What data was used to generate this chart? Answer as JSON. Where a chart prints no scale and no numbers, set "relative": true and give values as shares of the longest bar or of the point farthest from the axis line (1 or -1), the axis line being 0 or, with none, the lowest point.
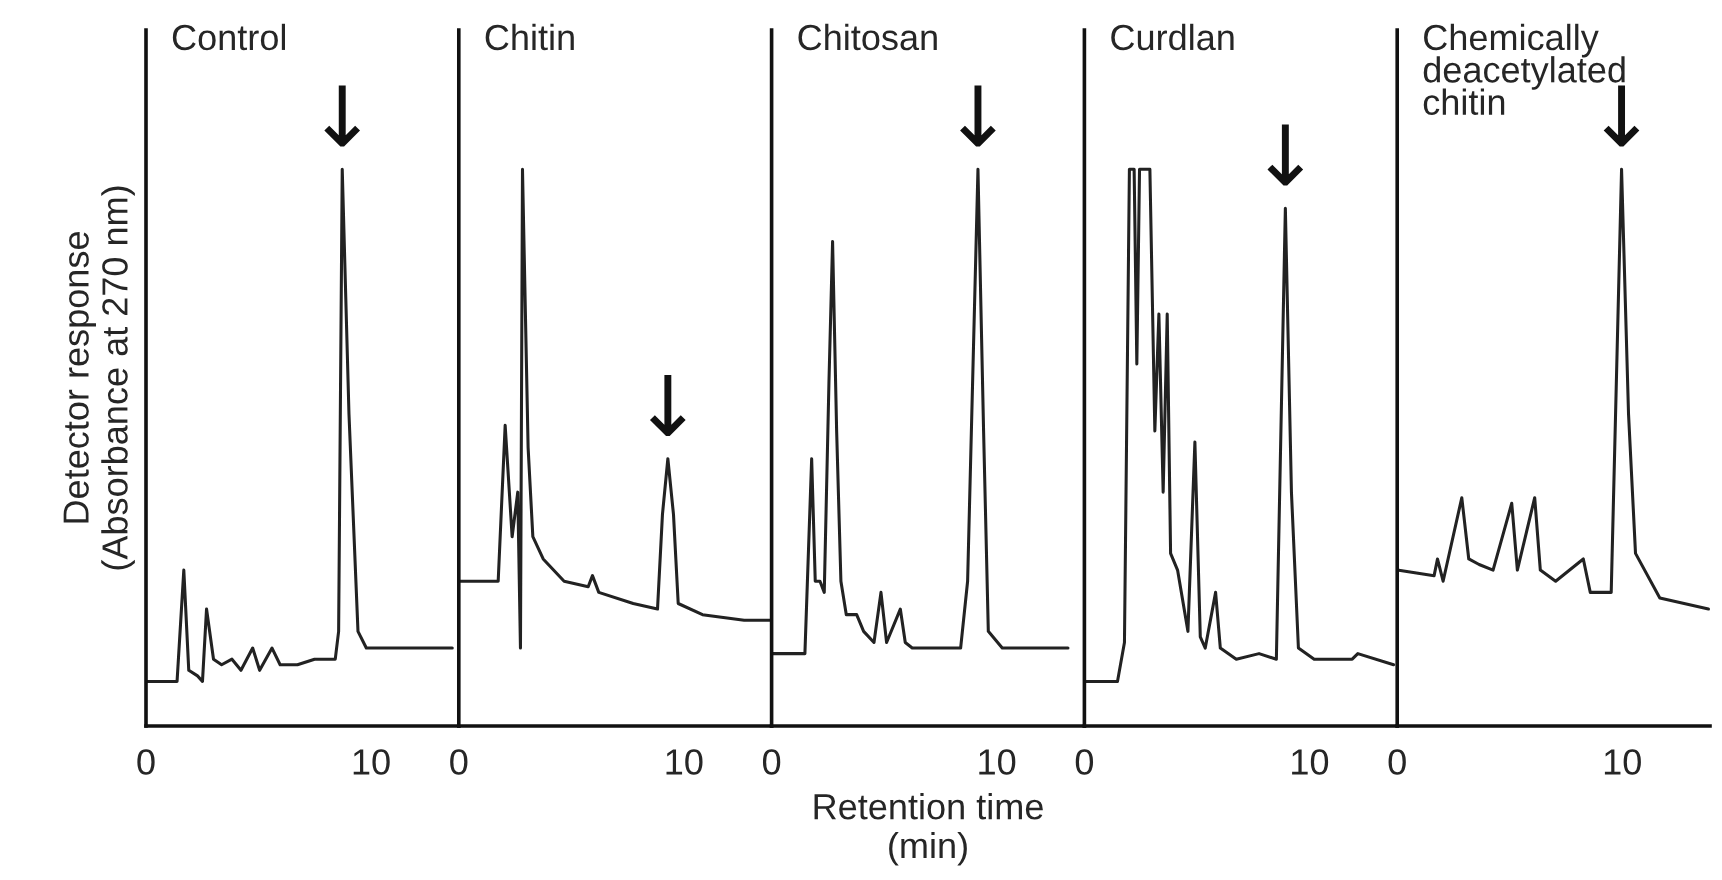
{
  "chart_data": [
    {
      "type": "line",
      "relative": true,
      "title": "Control",
      "ylabel": "Detector response\n(Absorbance at 270 nm)",
      "xlim": [
        0,
        13.9
      ],
      "xticks": [
        0,
        10
      ],
      "tick_labels": "x",
      "grid": false,
      "series": [
        {
          "color": "#222222",
          "x": [
            0,
            1.38,
            1.68,
            1.9,
            2.29,
            2.51,
            2.69,
            3.0,
            3.36,
            3.82,
            4.22,
            4.74,
            5.05,
            5.6,
            5.96,
            6.73,
            7.49,
            8.41,
            8.56,
            8.72,
            9.02,
            9.42,
            9.79,
            11.31,
            13.61
          ],
          "values": [
            0.08,
            0.08,
            0.28,
            0.1,
            0.09,
            0.08,
            0.21,
            0.12,
            0.11,
            0.12,
            0.1,
            0.14,
            0.1,
            0.14,
            0.11,
            0.11,
            0.12,
            0.12,
            0.17,
            1,
            0.56,
            0.17,
            0.14,
            0.14,
            0.14
          ]
        }
      ],
      "annotations": [
        {
          "text": "↓",
          "x": 8.72,
          "y": 1
        }
      ]
    },
    {
      "type": "line",
      "relative": true,
      "title": "Chitin",
      "xlim": [
        0,
        13.9
      ],
      "xticks": [
        0,
        10
      ],
      "tick_labels": "x",
      "grid": false,
      "series": [
        {
          "color": "#222222",
          "x": [
            0,
            1.75,
            2.06,
            2.37,
            2.62,
            2.74,
            2.83,
            3.08,
            3.29,
            3.75,
            4.68,
            5.75,
            5.94,
            6.22,
            7.75,
            8.83,
            9.05,
            9.29,
            9.54,
            9.75,
            10.83,
            12.68,
            13.9
          ],
          "values": [
            0.26,
            0.26,
            0.54,
            0.34,
            0.42,
            0.14,
            1,
            0.5,
            0.34,
            0.3,
            0.26,
            0.25,
            0.27,
            0.24,
            0.22,
            0.21,
            0.38,
            0.48,
            0.38,
            0.22,
            0.2,
            0.19,
            0.19
          ]
        }
      ],
      "annotations": [
        {
          "text": "↓",
          "x": 9.29,
          "y": 0.48
        }
      ]
    },
    {
      "type": "line",
      "relative": true,
      "title": "Chitosan",
      "xlabel": "Retention time\n(min)",
      "xlim": [
        0,
        13.9
      ],
      "xticks": [
        0,
        10
      ],
      "tick_labels": "x",
      "grid": false,
      "series": [
        {
          "color": "#222222",
          "x": [
            0,
            1.48,
            1.78,
            1.94,
            2.15,
            2.34,
            2.55,
            2.71,
            2.89,
            3.08,
            3.32,
            3.78,
            4.09,
            4.55,
            4.86,
            5.11,
            5.72,
            5.94,
            6.25,
            7.63,
            8.4,
            8.71,
            9.17,
            9.42,
            9.63,
            10.25,
            13.17
          ],
          "values": [
            0.13,
            0.13,
            0.48,
            0.26,
            0.26,
            0.24,
            0.62,
            0.87,
            0.53,
            0.26,
            0.2,
            0.2,
            0.17,
            0.15,
            0.24,
            0.15,
            0.21,
            0.15,
            0.14,
            0.14,
            0.14,
            0.26,
            1,
            0.53,
            0.17,
            0.14,
            0.14
          ]
        }
      ],
      "annotations": [
        {
          "text": "↓",
          "x": 9.17,
          "y": 1
        }
      ]
    },
    {
      "type": "line",
      "relative": true,
      "title": "Curdlan",
      "xlim": [
        0,
        13.9
      ],
      "xticks": [
        0,
        10
      ],
      "tick_labels": "x",
      "grid": false,
      "series": [
        {
          "color": "#222222",
          "x": [
            0,
            1.47,
            1.78,
            2.0,
            2.21,
            2.33,
            2.45,
            2.91,
            3.13,
            3.31,
            3.5,
            3.68,
            3.83,
            4.14,
            4.6,
            4.91,
            5.15,
            5.37,
            5.83,
            6.04,
            6.75,
            7.76,
            8.53,
            8.93,
            9.2,
            9.51,
            10.21,
            11.9,
            12.15,
            13.74
          ],
          "values": [
            0.08,
            0.08,
            0.15,
            1,
            1,
            0.65,
            1,
            1,
            0.53,
            0.74,
            0.42,
            0.74,
            0.31,
            0.28,
            0.17,
            0.51,
            0.16,
            0.14,
            0.24,
            0.14,
            0.12,
            0.13,
            0.12,
            0.93,
            0.42,
            0.14,
            0.12,
            0.12,
            0.13,
            0.11
          ]
        }
      ],
      "annotations": [
        {
          "text": "↓",
          "x": 8.93,
          "y": 0.93
        }
      ]
    },
    {
      "type": "line",
      "relative": true,
      "title": "Chemically\ndeacetylated\nchitin",
      "xlim": [
        0,
        13.9
      ],
      "xticks": [
        0,
        10
      ],
      "tick_labels": "x",
      "grid": false,
      "series": [
        {
          "color": "#222222",
          "x": [
            0,
            1.64,
            1.79,
            2.04,
            2.87,
            3.18,
            3.64,
            4.26,
            5.09,
            5.34,
            6.11,
            6.36,
            7.04,
            8.27,
            8.58,
            9.51,
            9.97,
            10.28,
            10.59,
            11.67,
            13.83
          ],
          "values": [
            0.28,
            0.27,
            0.3,
            0.26,
            0.41,
            0.3,
            0.29,
            0.28,
            0.4,
            0.28,
            0.41,
            0.28,
            0.26,
            0.3,
            0.24,
            0.24,
            1,
            0.56,
            0.31,
            0.23,
            0.21
          ]
        }
      ],
      "annotations": [
        {
          "text": "↓",
          "x": 9.97,
          "y": 1
        }
      ]
    }
  ]
}
